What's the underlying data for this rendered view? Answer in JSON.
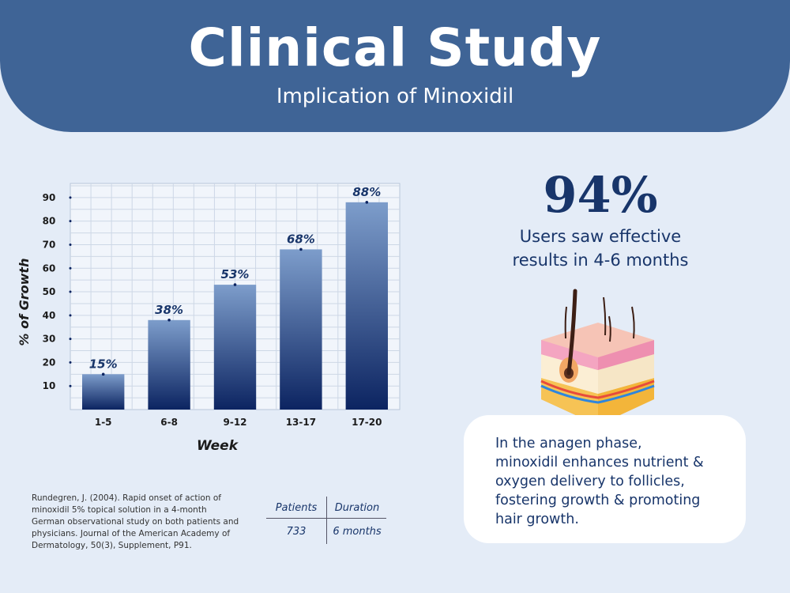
{
  "header": {
    "title": "Clinical Study",
    "subtitle": "Implication of Minoxidil"
  },
  "chart_data": {
    "type": "bar",
    "categories": [
      "1-5",
      "6-8",
      "9-12",
      "13-17",
      "17-20"
    ],
    "values": [
      15,
      38,
      53,
      68,
      88
    ],
    "data_labels": [
      "15%",
      "38%",
      "53%",
      "68%",
      "88%"
    ],
    "xlabel": "Week",
    "ylabel": "% of Growth",
    "yticks": [
      10,
      20,
      30,
      40,
      50,
      60,
      70,
      80,
      90
    ],
    "ylim": [
      0,
      96
    ],
    "grid": true,
    "bar_color_top": "#7d9dcb",
    "bar_color_bottom": "#0c2461"
  },
  "stat": {
    "value": "94%",
    "description_line1": "Users saw effective",
    "description_line2": "results in 4-6 months"
  },
  "info_card": {
    "text_lines": [
      "In the anagen phase,",
      "minoxidil enhances nutrient &",
      "oxygen delivery to follicles,",
      "fostering growth & promoting",
      "hair growth."
    ]
  },
  "citation": {
    "lines": [
      "Rundegren, J. (2004). Rapid onset of action of",
      "minoxidil 5% topical solution in a 4-month",
      "German observational study on both patients and",
      "physicians. Journal of the American Academy of",
      "Dermatology, 50(3), Supplement, P91."
    ]
  },
  "study_table": {
    "headers": [
      "Patients",
      "Duration"
    ],
    "row": [
      "733",
      "6 months"
    ]
  },
  "colors": {
    "header_bg": "#3f6496",
    "page_bg": "#e4ecf7",
    "text_dark": "#18356a"
  },
  "icons": {
    "illustration": "skin-hair-follicle-icon"
  }
}
